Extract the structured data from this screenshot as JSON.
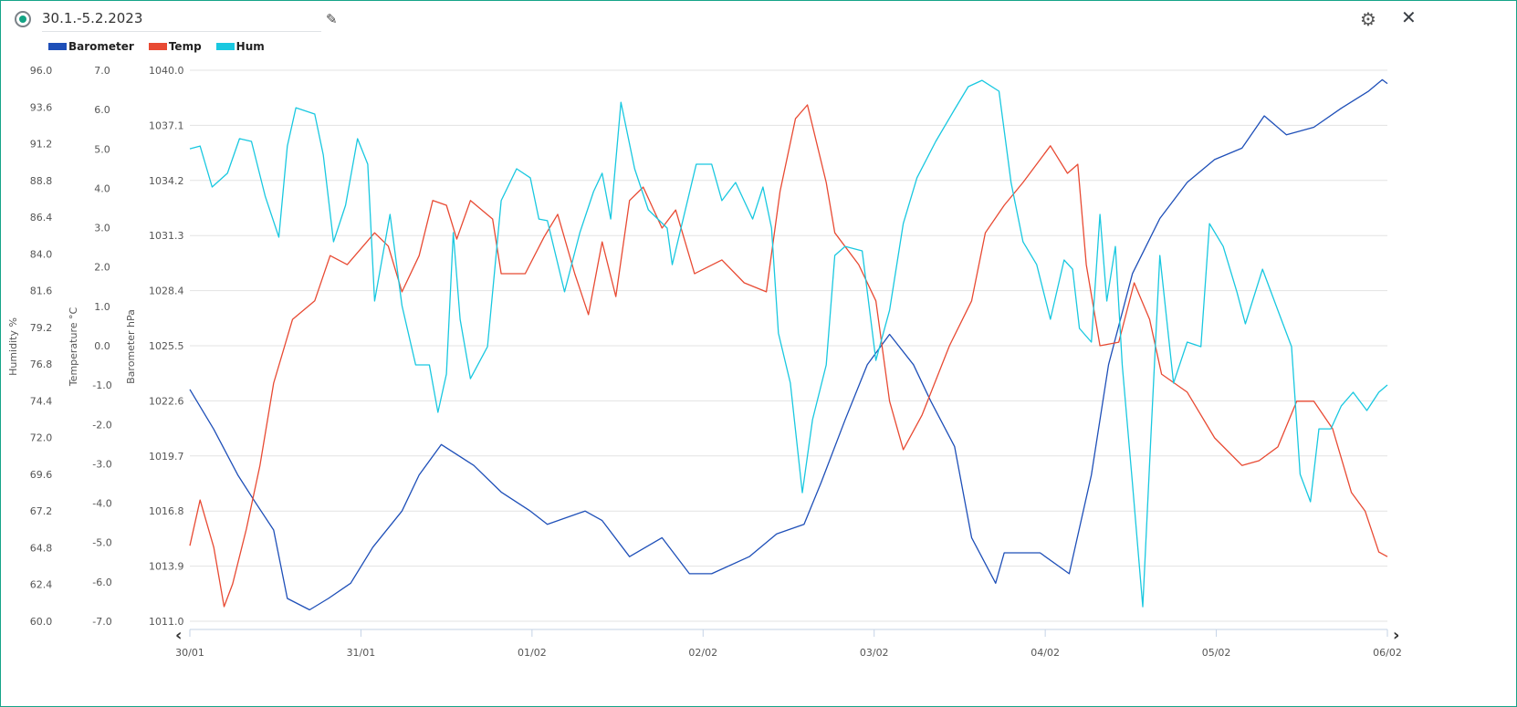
{
  "header": {
    "title": "30.1.-5.2.2023",
    "edit_icon": "pencil-icon",
    "settings_icon": "gear-icon",
    "close_icon": "close-icon"
  },
  "colors": {
    "barometer": "#1e4fb8",
    "temp": "#e84a33",
    "hum": "#19c8e0",
    "accent": "#13a384"
  },
  "chart_data": {
    "type": "line",
    "title": "30.1.-5.2.2023",
    "legend": [
      "Barometer",
      "Temp",
      "Hum"
    ],
    "legend_position": "top-left",
    "x_unit": "days since 30/01",
    "x_ticks": [
      "30/01",
      "31/01",
      "01/02",
      "02/02",
      "03/02",
      "04/02",
      "05/02",
      "06/02"
    ],
    "xlim": [
      0,
      7
    ],
    "axes": {
      "hum": {
        "label": "Humidity %",
        "ylim": [
          60,
          96
        ],
        "ticks": [
          "96.0",
          "93.6",
          "91.2",
          "88.8",
          "86.4",
          "84.0",
          "81.6",
          "79.2",
          "76.8",
          "74.4",
          "72.0",
          "69.6",
          "67.2",
          "64.8",
          "62.4",
          "60.0"
        ]
      },
      "temp": {
        "label": "Temperature °C",
        "ylim": [
          -7,
          7
        ],
        "ticks": [
          "7.0",
          "6.0",
          "5.0",
          "4.0",
          "3.0",
          "2.0",
          "1.0",
          "0.0",
          "-1.0",
          "-2.0",
          "-3.0",
          "-4.0",
          "-5.0",
          "-6.0",
          "-7.0"
        ]
      },
      "baro": {
        "label": "Barometer hPa",
        "ylim": [
          1011,
          1040
        ],
        "ticks": [
          "1040.0",
          "1037.1",
          "1034.2",
          "1031.3",
          "1028.4",
          "1025.5",
          "1022.6",
          "1019.7",
          "1016.8",
          "1013.9",
          "1011.0"
        ]
      }
    },
    "series": [
      {
        "name": "Barometer",
        "axis": "baro",
        "x": [
          0,
          0.14,
          0.28,
          0.38,
          0.49,
          0.57,
          0.7,
          0.81,
          0.94,
          1.07,
          1.24,
          1.34,
          1.47,
          1.66,
          1.82,
          1.99,
          2.09,
          2.31,
          2.41,
          2.57,
          2.76,
          2.92,
          3.05,
          3.27,
          3.43,
          3.59,
          3.69,
          3.83,
          3.96,
          4.09,
          4.23,
          4.33,
          4.47,
          4.57,
          4.71,
          4.76,
          4.97,
          5.14,
          5.27,
          5.37,
          5.51,
          5.67,
          5.83,
          5.99,
          6.15,
          6.28,
          6.41,
          6.57,
          6.73,
          6.89,
          6.97,
          7.0
        ],
        "y": [
          1023.2,
          1021.1,
          1018.7,
          1017.3,
          1015.8,
          1012.2,
          1011.6,
          1012.2,
          1013.0,
          1014.9,
          1016.8,
          1018.7,
          1020.3,
          1019.2,
          1017.8,
          1016.8,
          1016.1,
          1016.8,
          1016.3,
          1014.4,
          1015.4,
          1013.5,
          1013.5,
          1014.4,
          1015.6,
          1016.1,
          1018.3,
          1021.6,
          1024.5,
          1026.1,
          1024.5,
          1022.6,
          1020.2,
          1015.4,
          1013.0,
          1014.6,
          1014.6,
          1013.5,
          1018.7,
          1024.5,
          1029.3,
          1032.2,
          1034.1,
          1035.3,
          1035.9,
          1037.6,
          1036.6,
          1037.0,
          1038.0,
          1038.9,
          1039.5,
          1039.3
        ]
      },
      {
        "name": "Temp",
        "axis": "temp",
        "x": [
          0,
          0.06,
          0.14,
          0.2,
          0.25,
          0.33,
          0.41,
          0.49,
          0.6,
          0.73,
          0.82,
          0.92,
          1.08,
          1.16,
          1.24,
          1.34,
          1.42,
          1.5,
          1.56,
          1.64,
          1.77,
          1.82,
          1.96,
          2.07,
          2.15,
          2.25,
          2.33,
          2.41,
          2.49,
          2.57,
          2.65,
          2.76,
          2.84,
          2.95,
          3.11,
          3.24,
          3.37,
          3.45,
          3.54,
          3.61,
          3.72,
          3.77,
          3.91,
          4.01,
          4.09,
          4.17,
          4.28,
          4.44,
          4.57,
          4.65,
          4.76,
          4.87,
          5.03,
          5.13,
          5.19,
          5.24,
          5.32,
          5.43,
          5.52,
          5.61,
          5.68,
          5.83,
          5.99,
          6.15,
          6.25,
          6.36,
          6.47,
          6.57,
          6.68,
          6.79,
          6.87,
          6.95,
          7.0
        ],
        "y": [
          -5.08,
          -3.92,
          -5.12,
          -6.63,
          -6.05,
          -4.66,
          -3.04,
          -0.95,
          0.67,
          1.14,
          2.29,
          2.06,
          2.87,
          2.53,
          1.37,
          2.29,
          3.69,
          3.57,
          2.71,
          3.69,
          3.22,
          1.83,
          1.83,
          2.76,
          3.34,
          1.83,
          0.79,
          2.64,
          1.25,
          3.69,
          4.03,
          2.99,
          3.45,
          1.83,
          2.18,
          1.6,
          1.37,
          3.92,
          5.77,
          6.12,
          4.15,
          2.87,
          2.06,
          1.14,
          -1.41,
          -2.64,
          -1.76,
          0.0,
          1.14,
          2.87,
          3.57,
          4.15,
          5.08,
          4.38,
          4.61,
          2.06,
          0.0,
          0.09,
          1.6,
          0.67,
          -0.72,
          -1.18,
          -2.34,
          -3.04,
          -2.92,
          -2.57,
          -1.41,
          -1.41,
          -2.11,
          -3.73,
          -4.2,
          -5.24,
          -5.36
        ]
      },
      {
        "name": "Hum",
        "axis": "hum",
        "x": [
          0,
          0.06,
          0.13,
          0.22,
          0.29,
          0.36,
          0.44,
          0.52,
          0.57,
          0.62,
          0.73,
          0.78,
          0.84,
          0.91,
          0.98,
          1.04,
          1.08,
          1.17,
          1.24,
          1.32,
          1.4,
          1.45,
          1.5,
          1.54,
          1.58,
          1.64,
          1.74,
          1.82,
          1.91,
          1.99,
          2.04,
          2.09,
          2.19,
          2.28,
          2.36,
          2.41,
          2.46,
          2.52,
          2.6,
          2.68,
          2.79,
          2.82,
          2.96,
          3.05,
          3.11,
          3.19,
          3.29,
          3.35,
          3.4,
          3.44,
          3.51,
          3.58,
          3.64,
          3.72,
          3.77,
          3.83,
          3.93,
          4.01,
          4.09,
          4.17,
          4.25,
          4.36,
          4.47,
          4.55,
          4.63,
          4.73,
          4.8,
          4.87,
          4.95,
          5.03,
          5.11,
          5.16,
          5.2,
          5.27,
          5.32,
          5.36,
          5.41,
          5.45,
          5.51,
          5.57,
          5.62,
          5.67,
          5.75,
          5.83,
          5.91,
          5.96,
          6.04,
          6.12,
          6.17,
          6.27,
          6.36,
          6.44,
          6.49,
          6.55,
          6.6,
          6.67,
          6.73,
          6.8,
          6.88,
          6.95,
          7.0
        ],
        "y": [
          90.87,
          91.05,
          88.37,
          89.27,
          91.53,
          91.35,
          87.78,
          85.09,
          91.05,
          93.55,
          93.14,
          90.46,
          84.79,
          87.18,
          91.53,
          89.86,
          80.92,
          86.58,
          80.62,
          76.75,
          76.75,
          73.65,
          76.15,
          85.39,
          79.73,
          75.85,
          77.94,
          87.48,
          89.56,
          88.97,
          86.28,
          86.17,
          81.52,
          85.39,
          88.07,
          89.27,
          86.28,
          93.91,
          89.56,
          86.88,
          85.69,
          83.3,
          89.86,
          89.86,
          87.48,
          88.67,
          86.28,
          88.37,
          85.69,
          78.83,
          75.56,
          68.4,
          73.17,
          76.75,
          83.9,
          84.49,
          84.2,
          77.04,
          80.32,
          85.98,
          88.97,
          91.35,
          93.44,
          94.93,
          95.34,
          94.63,
          88.67,
          84.79,
          83.3,
          79.73,
          83.6,
          83.0,
          79.13,
          78.24,
          86.58,
          80.92,
          84.49,
          76.75,
          69.0,
          60.95,
          72.57,
          83.9,
          75.56,
          78.24,
          77.94,
          85.98,
          84.49,
          81.52,
          79.43,
          83.0,
          80.32,
          77.94,
          69.6,
          67.81,
          72.57,
          72.57,
          74.06,
          74.96,
          73.77,
          74.96,
          75.44
        ]
      }
    ]
  }
}
